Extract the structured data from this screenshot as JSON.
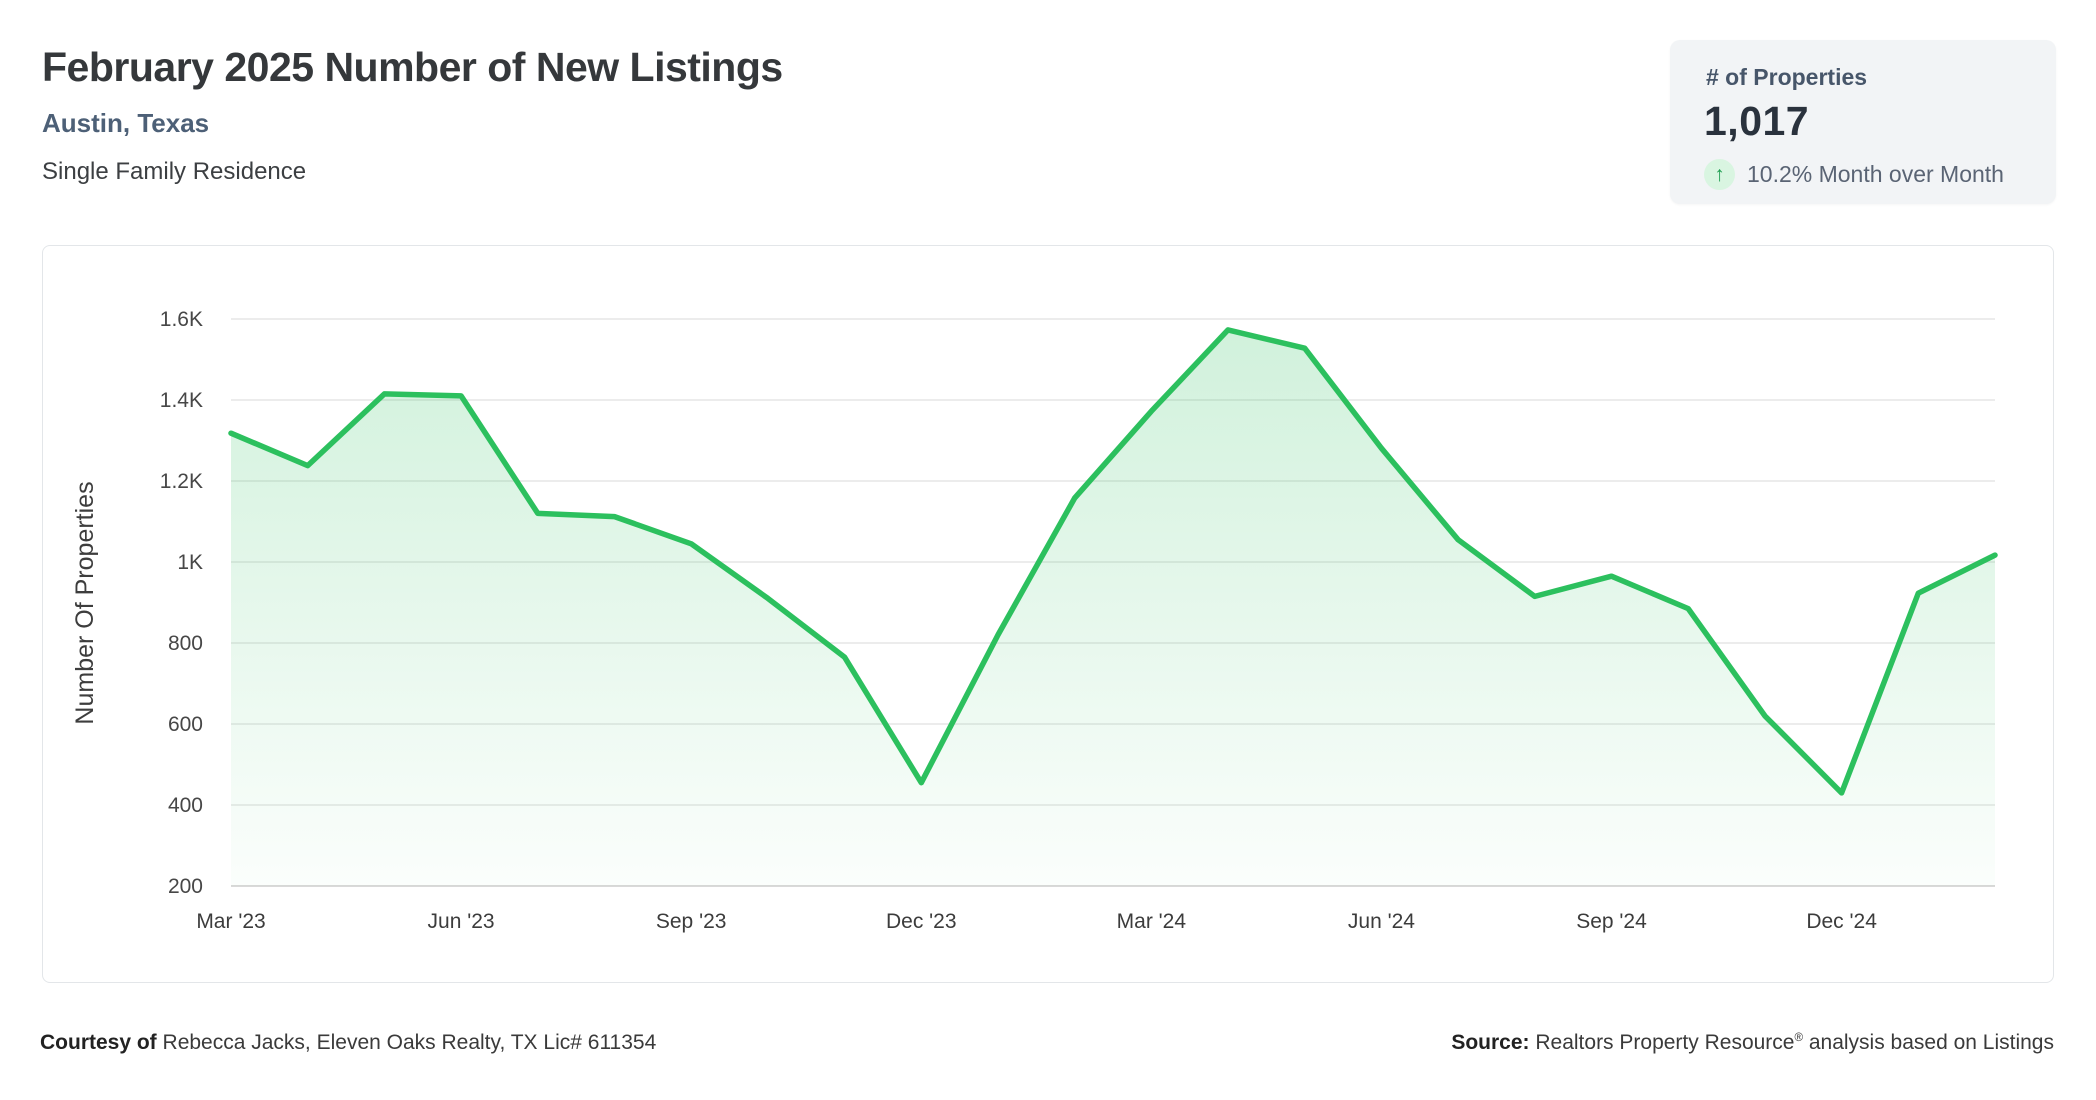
{
  "header": {
    "title": "February 2025 Number of New Listings",
    "location": "Austin, Texas",
    "property_type": "Single Family Residence"
  },
  "stats_card": {
    "label": "# of Properties",
    "value": "1,017",
    "trend": "up",
    "trend_icon": "↑",
    "change_text": "10.2% Month over Month",
    "icon_bg_color": "#d9f5e1",
    "icon_color": "#1e9e50"
  },
  "chart_data": {
    "type": "area",
    "title": "",
    "xlabel": "",
    "ylabel": "Number Of Properties",
    "x": [
      "Mar '23",
      "Apr '23",
      "May '23",
      "Jun '23",
      "Jul '23",
      "Aug '23",
      "Sep '23",
      "Oct '23",
      "Nov '23",
      "Dec '23",
      "Jan '24",
      "Feb '24",
      "Mar '24",
      "Apr '24",
      "May '24",
      "Jun '24",
      "Jul '24",
      "Aug '24",
      "Sep '24",
      "Oct '24",
      "Nov '24",
      "Dec '24",
      "Jan '25",
      "Feb '25"
    ],
    "values": [
      1318,
      1238,
      1415,
      1410,
      1120,
      1112,
      1045,
      910,
      765,
      455,
      820,
      1158,
      1372,
      1573,
      1528,
      1281,
      1055,
      915,
      965,
      885,
      620,
      430,
      923,
      1017
    ],
    "x_tick_labels": [
      "Mar '23",
      "Jun '23",
      "Sep '23",
      "Dec '23",
      "Mar '24",
      "Jun '24",
      "Sep '24",
      "Dec '24"
    ],
    "x_tick_indices": [
      0,
      3,
      6,
      9,
      12,
      15,
      18,
      21
    ],
    "y_ticks": [
      {
        "label": "200",
        "value": 200
      },
      {
        "label": "400",
        "value": 400
      },
      {
        "label": "600",
        "value": 600
      },
      {
        "label": "800",
        "value": 800
      },
      {
        "label": "1K",
        "value": 1000
      },
      {
        "label": "1.2K",
        "value": 1200
      },
      {
        "label": "1.4K",
        "value": 1400
      },
      {
        "label": "1.6K",
        "value": 1600
      }
    ],
    "ylim": [
      200,
      1600
    ],
    "grid": true,
    "legend": "none",
    "line_color": "#2cc05e",
    "fill_top": "rgba(44,192,94,0.22)",
    "fill_bottom": "rgba(44,192,94,0.02)",
    "grid_color": "#ececec",
    "axis_line_color": "#d9d9d9",
    "tick_label_color": "#474747"
  },
  "footer": {
    "courtesy_label": "Courtesy of",
    "courtesy_text": " Rebecca Jacks, Eleven Oaks Realty, TX Lic# 611354",
    "source_label": "Source:",
    "source_text_pre": " Realtors Property Resource",
    "source_reg": "®",
    "source_text_post": " analysis based on Listings"
  }
}
